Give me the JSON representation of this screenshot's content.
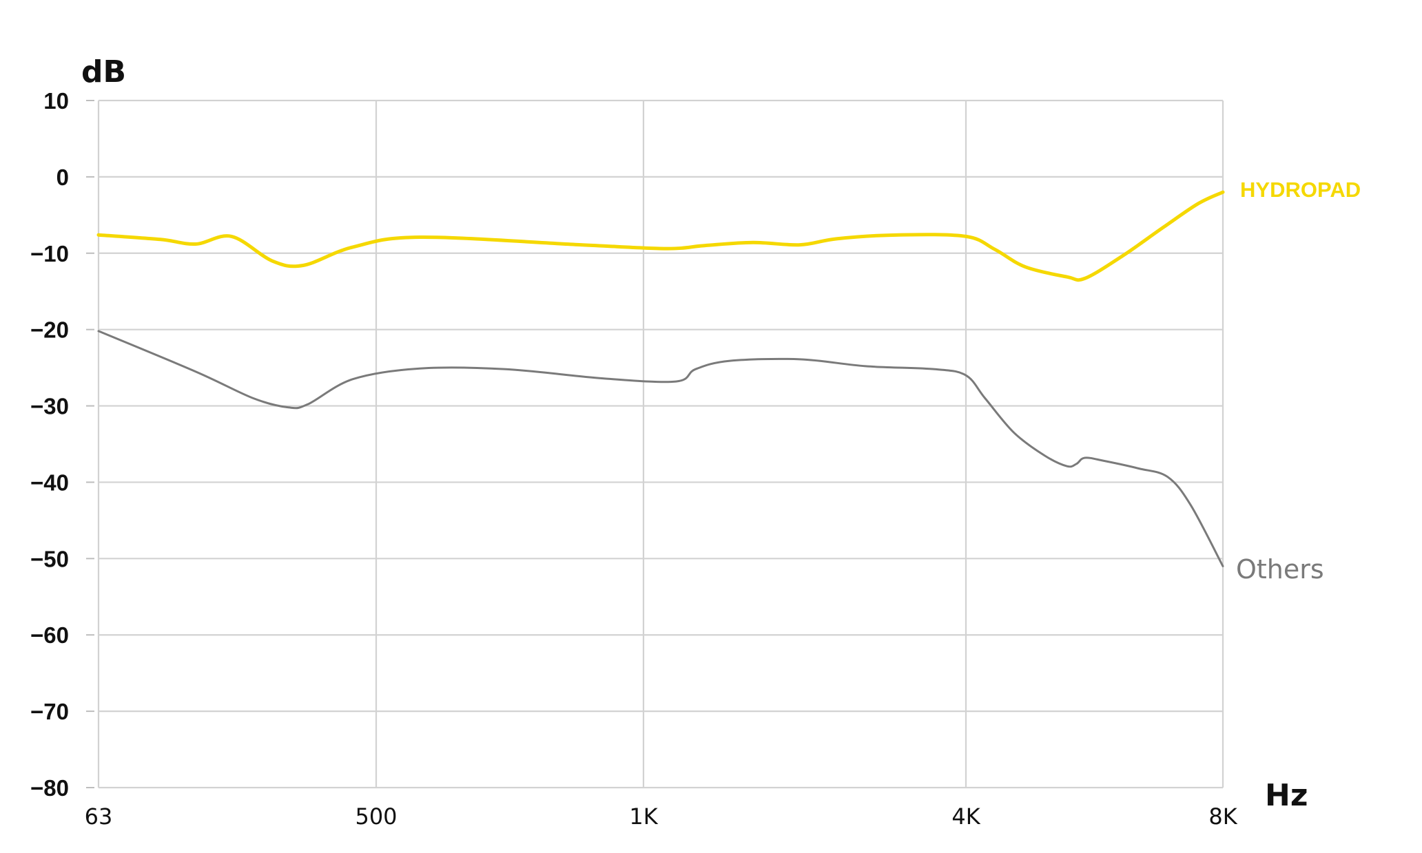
{
  "chart_data": {
    "type": "line",
    "title": "",
    "xlabel": "Hz",
    "ylabel": "dB",
    "x_tick_labels": [
      "63",
      "500",
      "1K",
      "4K",
      "8K"
    ],
    "y_tick_labels": [
      "10",
      "0",
      "-10",
      "-20",
      "-30",
      "-40",
      "-50",
      "-60",
      "-70",
      "-80"
    ],
    "ylim": [
      -80,
      10
    ],
    "grid": true,
    "series": [
      {
        "name": "HYDROPAD",
        "color": "#f5d800",
        "points": [
          {
            "x": 63,
            "y": -7.6
          },
          {
            "x": 100,
            "y": -8.2
          },
          {
            "x": 130,
            "y": -8.8
          },
          {
            "x": 170,
            "y": -7.8
          },
          {
            "x": 230,
            "y": -11.0
          },
          {
            "x": 290,
            "y": -11.6
          },
          {
            "x": 420,
            "y": -9.2
          },
          {
            "x": 560,
            "y": -7.9
          },
          {
            "x": 850,
            "y": -8.9
          },
          {
            "x": 1100,
            "y": -9.4
          },
          {
            "x": 1300,
            "y": -9.0
          },
          {
            "x": 1600,
            "y": -8.6
          },
          {
            "x": 1960,
            "y": -8.9
          },
          {
            "x": 2300,
            "y": -8.1
          },
          {
            "x": 3000,
            "y": -7.6
          },
          {
            "x": 4000,
            "y": -7.8
          },
          {
            "x": 5600,
            "y": -9.5
          },
          {
            "x": 8000,
            "y": -11.8
          },
          {
            "x": 13000,
            "y": -13.1
          },
          {
            "x": 16000,
            "y": -13.3
          },
          {
            "x": 25000,
            "y": -10.3
          },
          {
            "x": 40000,
            "y": -6.6
          },
          {
            "x": 60000,
            "y": -3.5
          },
          {
            "x": 80000,
            "y": -2.0
          }
        ]
      },
      {
        "name": "Others",
        "color": "#7a7a7a",
        "points": [
          {
            "x": 63,
            "y": -20.2
          },
          {
            "x": 130,
            "y": -25.5
          },
          {
            "x": 200,
            "y": -29.0
          },
          {
            "x": 260,
            "y": -30.2
          },
          {
            "x": 300,
            "y": -29.8
          },
          {
            "x": 420,
            "y": -26.5
          },
          {
            "x": 560,
            "y": -25.1
          },
          {
            "x": 700,
            "y": -25.2
          },
          {
            "x": 900,
            "y": -26.4
          },
          {
            "x": 1150,
            "y": -26.8
          },
          {
            "x": 1250,
            "y": -25.2
          },
          {
            "x": 1450,
            "y": -24.1
          },
          {
            "x": 1960,
            "y": -23.9
          },
          {
            "x": 2600,
            "y": -24.8
          },
          {
            "x": 3500,
            "y": -25.2
          },
          {
            "x": 4000,
            "y": -26.0
          },
          {
            "x": 5000,
            "y": -29.0
          },
          {
            "x": 7000,
            "y": -33.5
          },
          {
            "x": 10000,
            "y": -36.5
          },
          {
            "x": 13000,
            "y": -37.9
          },
          {
            "x": 14500,
            "y": -37.6
          },
          {
            "x": 16000,
            "y": -36.8
          },
          {
            "x": 20000,
            "y": -37.2
          },
          {
            "x": 30000,
            "y": -38.2
          },
          {
            "x": 42000,
            "y": -39.3
          },
          {
            "x": 55000,
            "y": -43.0
          },
          {
            "x": 80000,
            "y": -51.0
          }
        ]
      }
    ]
  }
}
